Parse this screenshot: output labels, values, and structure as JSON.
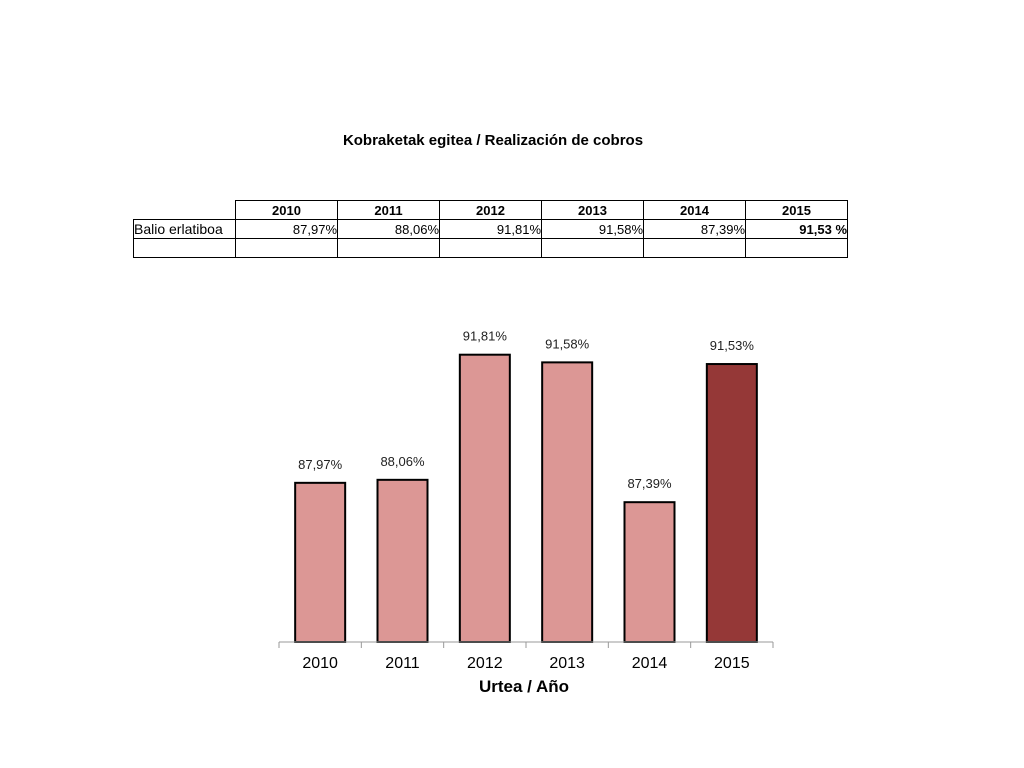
{
  "title": "Kobraketak egitea / Realización de cobros",
  "table": {
    "row_label": "Balio erlatiboa",
    "years": [
      "2010",
      "2011",
      "2012",
      "2013",
      "2014",
      "2015"
    ],
    "values": [
      "87,97%",
      "88,06%",
      "91,81%",
      "91,58%",
      "87,39%",
      "91,53 %"
    ]
  },
  "colors": {
    "bar": "#dc9795",
    "highlight": "#953837",
    "axis": "#999999"
  },
  "chart_data": {
    "type": "bar",
    "categories": [
      "2010",
      "2011",
      "2012",
      "2013",
      "2014",
      "2015"
    ],
    "values": [
      87.97,
      88.06,
      91.81,
      91.58,
      87.39,
      91.53
    ],
    "data_labels": [
      "87,97%",
      "88,06%",
      "91,81%",
      "91,58%",
      "87,39%",
      "91,53%"
    ],
    "xlabel": "Urtea / Año",
    "ylabel": "",
    "ylim": [
      83.2,
      92.7
    ],
    "highlight_category": "2015",
    "grid": false,
    "legend": "none"
  }
}
